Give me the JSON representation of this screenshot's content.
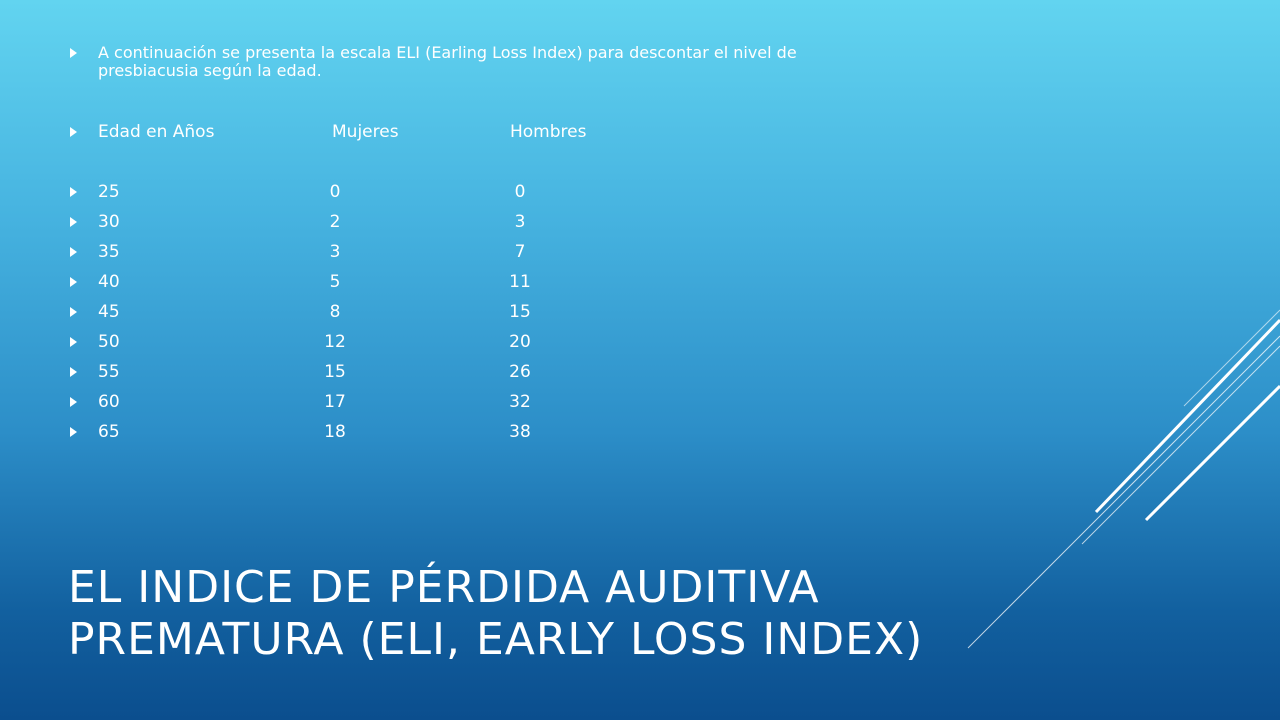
{
  "intro": "A continuación se presenta la escala ELI (Earling Loss Index) para descontar el nivel de presbiacusia según la edad.",
  "table": {
    "headers": [
      "Edad en Años",
      "Mujeres",
      "Hombres"
    ],
    "rows": [
      [
        "25",
        "0",
        "0"
      ],
      [
        "30",
        "2",
        "3"
      ],
      [
        "35",
        "3",
        "7"
      ],
      [
        "40",
        "5",
        "11"
      ],
      [
        "45",
        "8",
        "15"
      ],
      [
        "50",
        "12",
        "20"
      ],
      [
        "55",
        "15",
        "26"
      ],
      [
        "60",
        "17",
        "32"
      ],
      [
        "65",
        "18",
        "38"
      ]
    ]
  },
  "title": {
    "line1": "EL INDICE DE PÉRDIDA AUDITIVA",
    "line2": "PREMATURA (ELI, EARLY LOSS INDEX)"
  },
  "icons": {
    "bullet": "triangle-bullet-icon"
  },
  "colors": {
    "text": "#ffffff",
    "bg_top": "#62d4f0",
    "bg_bottom": "#0b4e8e"
  }
}
